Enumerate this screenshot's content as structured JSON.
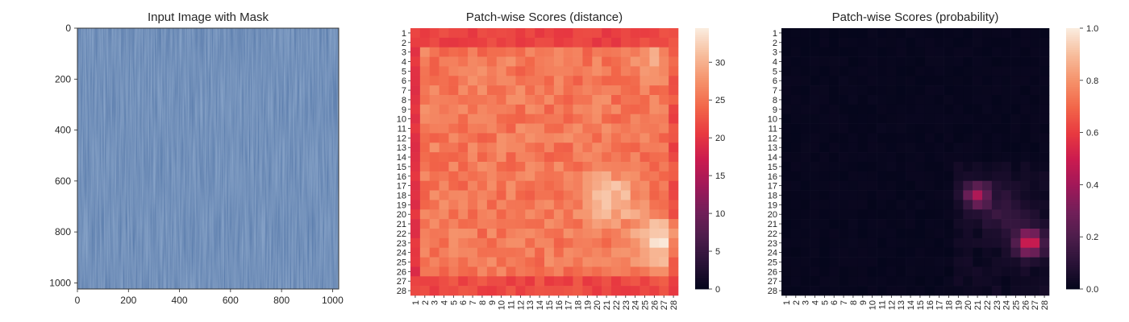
{
  "figure": {
    "background": "#ffffff"
  },
  "chart_data": [
    {
      "type": "image",
      "title": "Input Image with Mask",
      "xlim": [
        0,
        1024
      ],
      "ylim": [
        1024,
        0
      ],
      "xticks": [
        0,
        200,
        400,
        600,
        800,
        1000
      ],
      "yticks": [
        0,
        200,
        400,
        600,
        800,
        1000
      ],
      "image_description": "blue denim fabric texture with vertical streaks",
      "base_color": "#5d7fae"
    },
    {
      "type": "heatmap",
      "title": "Patch-wise Scores (distance)",
      "rows": 28,
      "cols": 28,
      "row_labels": [
        "1",
        "2",
        "3",
        "4",
        "5",
        "6",
        "7",
        "8",
        "9",
        "10",
        "11",
        "12",
        "13",
        "14",
        "15",
        "16",
        "17",
        "18",
        "19",
        "20",
        "21",
        "22",
        "23",
        "24",
        "25",
        "26",
        "27",
        "28"
      ],
      "col_labels": [
        "1",
        "2",
        "3",
        "4",
        "5",
        "6",
        "7",
        "8",
        "9",
        "10",
        "11",
        "12",
        "13",
        "14",
        "15",
        "16",
        "17",
        "18",
        "19",
        "20",
        "21",
        "22",
        "23",
        "24",
        "25",
        "26",
        "27",
        "28"
      ],
      "vmin": 0,
      "vmax": 34.5,
      "colorbar_ticks": [
        0,
        5,
        10,
        15,
        20,
        25,
        30
      ],
      "colormap": "rocket",
      "values_description": "about 19-22 along the border, 24-28 in the interior, with bright hotspots near rows 17-20 cols 20-23 (about 31-32) and rows 22-24 cols 25-27 (about 33-34)"
    },
    {
      "type": "heatmap",
      "title": "Patch-wise Scores (probability)",
      "rows": 28,
      "cols": 28,
      "row_labels": [
        "1",
        "2",
        "3",
        "4",
        "5",
        "6",
        "7",
        "8",
        "9",
        "10",
        "11",
        "12",
        "13",
        "14",
        "15",
        "16",
        "17",
        "18",
        "19",
        "20",
        "21",
        "22",
        "23",
        "24",
        "25",
        "26",
        "27",
        "28"
      ],
      "col_labels": [
        "1",
        "2",
        "3",
        "4",
        "5",
        "6",
        "7",
        "8",
        "9",
        "10",
        "11",
        "12",
        "13",
        "14",
        "15",
        "16",
        "17",
        "18",
        "19",
        "20",
        "21",
        "22",
        "23",
        "24",
        "25",
        "26",
        "27",
        "28"
      ],
      "vmin": 0,
      "vmax": 1,
      "colorbar_ticks": [
        0.0,
        0.2,
        0.4,
        0.6,
        0.8,
        1.0
      ],
      "colorbar_tick_labels": [
        "0.0",
        "0.2",
        "0.4",
        "0.6",
        "0.8",
        "1.0"
      ],
      "colormap": "rocket",
      "values_description": "near 0 everywhere; cluster around rows 17-20 cols 20-22 peaking about 0.4, and rows 21-24 cols 25-27 peaking about 0.5"
    }
  ]
}
